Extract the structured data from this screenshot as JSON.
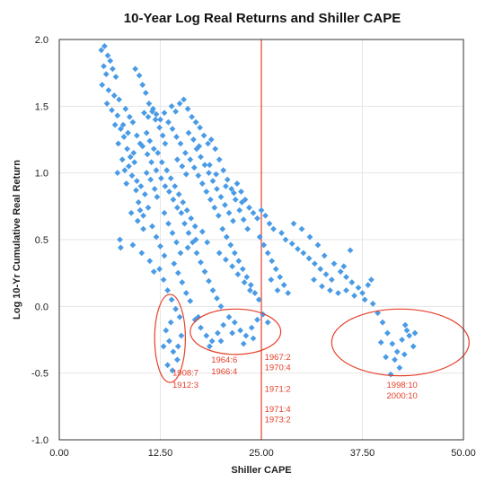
{
  "chart_data": {
    "type": "scatter",
    "title": "10-Year Log Real Returns and Shiller CAPE",
    "xlabel": "Shiller CAPE",
    "ylabel": "Log 10-Yr Cumulative Real Return",
    "xlim": [
      0,
      50
    ],
    "ylim": [
      -1.0,
      2.0
    ],
    "x_ticks": [
      "0.00",
      "12.50",
      "25.00",
      "37.50",
      "50.00"
    ],
    "y_ticks": [
      "2.0",
      "1.5",
      "1.0",
      "0.5",
      "0.0",
      "-0.5",
      "-1.0"
    ],
    "grid": true,
    "marker_color": "#4a9be6",
    "reference_line": {
      "x": 25.0,
      "color": "#e4402a"
    },
    "ellipses": [
      {
        "cx": 13.7,
        "cy": -0.24,
        "rx": 1.9,
        "ry": 0.33,
        "color": "#e4402a"
      },
      {
        "cx": 21.8,
        "cy": -0.19,
        "rx": 5.6,
        "ry": 0.17,
        "color": "#e4402a"
      },
      {
        "cx": 42.2,
        "cy": -0.27,
        "rx": 8.5,
        "ry": 0.25,
        "color": "#e4402a"
      }
    ],
    "annotations": [
      {
        "text": "1908:7",
        "x": 14.0,
        "y": -0.52
      },
      {
        "text": "1912:3",
        "x": 14.0,
        "y": -0.61
      },
      {
        "text": "1964:6",
        "x": 18.8,
        "y": -0.42
      },
      {
        "text": "1966:4",
        "x": 18.8,
        "y": -0.51
      },
      {
        "text": "1967:2",
        "x": 25.4,
        "y": -0.4
      },
      {
        "text": "1970:4",
        "x": 25.4,
        "y": -0.48
      },
      {
        "text": "1971:2",
        "x": 25.4,
        "y": -0.64
      },
      {
        "text": "1971:4",
        "x": 25.4,
        "y": -0.79
      },
      {
        "text": "1973:2",
        "x": 25.4,
        "y": -0.87
      },
      {
        "text": "1998:10",
        "x": 40.5,
        "y": -0.61
      },
      {
        "text": "2000:10",
        "x": 40.5,
        "y": -0.69
      }
    ],
    "points": [
      [
        5.2,
        1.92
      ],
      [
        5.6,
        1.95
      ],
      [
        6.0,
        1.88
      ],
      [
        5.5,
        1.8
      ],
      [
        6.3,
        1.84
      ],
      [
        5.8,
        1.74
      ],
      [
        6.6,
        1.78
      ],
      [
        7.0,
        1.72
      ],
      [
        5.3,
        1.66
      ],
      [
        6.1,
        1.62
      ],
      [
        6.8,
        1.58
      ],
      [
        7.4,
        1.55
      ],
      [
        5.9,
        1.52
      ],
      [
        6.5,
        1.47
      ],
      [
        7.2,
        1.43
      ],
      [
        6.9,
        1.36
      ],
      [
        7.6,
        1.33
      ],
      [
        8.0,
        1.27
      ],
      [
        7.3,
        1.22
      ],
      [
        8.4,
        1.18
      ],
      [
        8.8,
        1.12
      ],
      [
        9.3,
        1.08
      ],
      [
        8.1,
        1.02
      ],
      [
        9.0,
        0.98
      ],
      [
        9.6,
        0.94
      ],
      [
        10.1,
        0.9
      ],
      [
        10.6,
        0.84
      ],
      [
        9.8,
        0.78
      ],
      [
        11.0,
        0.74
      ],
      [
        10.4,
        0.68
      ],
      [
        9.2,
        1.15
      ],
      [
        8.6,
        1.05
      ],
      [
        7.8,
        1.1
      ],
      [
        7.2,
        1.0
      ],
      [
        8.3,
        0.92
      ],
      [
        9.5,
        0.87
      ],
      [
        10.8,
        1.0
      ],
      [
        11.3,
        0.95
      ],
      [
        11.8,
        0.88
      ],
      [
        12.1,
        0.82
      ],
      [
        9.4,
        1.78
      ],
      [
        9.9,
        1.73
      ],
      [
        10.3,
        1.66
      ],
      [
        10.7,
        1.6
      ],
      [
        11.1,
        1.52
      ],
      [
        11.5,
        1.46
      ],
      [
        11.9,
        1.4
      ],
      [
        12.4,
        1.34
      ],
      [
        12.8,
        1.28
      ],
      [
        13.1,
        1.22
      ],
      [
        10.5,
        1.45
      ],
      [
        11.0,
        1.42
      ],
      [
        11.6,
        1.48
      ],
      [
        12.0,
        1.44
      ],
      [
        12.5,
        1.4
      ],
      [
        13.0,
        1.45
      ],
      [
        13.5,
        1.38
      ],
      [
        14.0,
        1.33
      ],
      [
        14.5,
        1.27
      ],
      [
        15.0,
        1.22
      ],
      [
        12.2,
        1.15
      ],
      [
        12.7,
        1.08
      ],
      [
        13.3,
        1.02
      ],
      [
        13.8,
        0.96
      ],
      [
        14.3,
        0.9
      ],
      [
        14.8,
        0.84
      ],
      [
        15.3,
        0.78
      ],
      [
        15.8,
        0.72
      ],
      [
        16.3,
        0.66
      ],
      [
        16.8,
        0.6
      ],
      [
        13.9,
        1.5
      ],
      [
        14.4,
        1.46
      ],
      [
        14.9,
        1.52
      ],
      [
        15.4,
        1.55
      ],
      [
        15.9,
        1.48
      ],
      [
        16.4,
        1.42
      ],
      [
        16.9,
        1.38
      ],
      [
        17.4,
        1.34
      ],
      [
        17.9,
        1.28
      ],
      [
        18.4,
        1.22
      ],
      [
        15.2,
        1.05
      ],
      [
        15.7,
        0.99
      ],
      [
        16.2,
        1.1
      ],
      [
        16.7,
        1.04
      ],
      [
        17.2,
        0.98
      ],
      [
        17.7,
        0.92
      ],
      [
        18.2,
        0.86
      ],
      [
        18.7,
        0.8
      ],
      [
        19.2,
        0.74
      ],
      [
        19.7,
        0.68
      ],
      [
        17.0,
        1.18
      ],
      [
        17.5,
        1.12
      ],
      [
        18.0,
        1.06
      ],
      [
        18.5,
        1.0
      ],
      [
        19.0,
        0.94
      ],
      [
        19.5,
        0.88
      ],
      [
        20.0,
        0.82
      ],
      [
        20.5,
        0.76
      ],
      [
        21.0,
        0.7
      ],
      [
        21.5,
        0.64
      ],
      [
        18.8,
        1.25
      ],
      [
        19.3,
        1.18
      ],
      [
        19.8,
        1.1
      ],
      [
        20.3,
        1.02
      ],
      [
        20.8,
        0.95
      ],
      [
        21.3,
        0.88
      ],
      [
        21.8,
        0.8
      ],
      [
        22.3,
        0.72
      ],
      [
        22.8,
        0.65
      ],
      [
        23.3,
        0.58
      ],
      [
        20.2,
        0.58
      ],
      [
        20.7,
        0.52
      ],
      [
        21.2,
        0.46
      ],
      [
        21.7,
        0.4
      ],
      [
        22.2,
        0.34
      ],
      [
        22.7,
        0.28
      ],
      [
        23.2,
        0.22
      ],
      [
        23.7,
        0.16
      ],
      [
        24.2,
        0.1
      ],
      [
        24.7,
        0.05
      ],
      [
        15.5,
        0.62
      ],
      [
        16.0,
        0.55
      ],
      [
        16.5,
        0.48
      ],
      [
        17.0,
        0.4
      ],
      [
        17.5,
        0.33
      ],
      [
        18.0,
        0.26
      ],
      [
        18.5,
        0.19
      ],
      [
        19.0,
        0.12
      ],
      [
        19.5,
        0.06
      ],
      [
        20.0,
        0.0
      ],
      [
        13.0,
        0.7
      ],
      [
        13.5,
        0.62
      ],
      [
        14.0,
        0.55
      ],
      [
        14.5,
        0.48
      ],
      [
        15.0,
        0.4
      ],
      [
        14.2,
        0.32
      ],
      [
        14.7,
        0.25
      ],
      [
        15.2,
        0.18
      ],
      [
        15.7,
        0.1
      ],
      [
        16.2,
        0.04
      ],
      [
        11.5,
        0.6
      ],
      [
        12.0,
        0.52
      ],
      [
        12.5,
        0.45
      ],
      [
        13.0,
        0.38
      ],
      [
        12.4,
        0.28
      ],
      [
        12.9,
        0.2
      ],
      [
        13.4,
        0.12
      ],
      [
        13.9,
        0.05
      ],
      [
        14.4,
        -0.02
      ],
      [
        14.9,
        -0.08
      ],
      [
        10.0,
        0.72
      ],
      [
        10.4,
        0.58
      ],
      [
        9.7,
        0.64
      ],
      [
        8.9,
        0.7
      ],
      [
        7.5,
        0.5
      ],
      [
        7.6,
        0.44
      ],
      [
        9.1,
        0.46
      ],
      [
        10.2,
        0.4
      ],
      [
        11.2,
        0.34
      ],
      [
        11.7,
        0.26
      ],
      [
        22.0,
        0.92
      ],
      [
        22.5,
        0.86
      ],
      [
        23.0,
        0.8
      ],
      [
        23.5,
        0.74
      ],
      [
        24.0,
        0.7
      ],
      [
        24.5,
        0.66
      ],
      [
        25.0,
        0.72
      ],
      [
        25.5,
        0.68
      ],
      [
        26.0,
        0.62
      ],
      [
        26.5,
        0.58
      ],
      [
        24.8,
        0.52
      ],
      [
        25.3,
        0.46
      ],
      [
        25.8,
        0.4
      ],
      [
        26.3,
        0.34
      ],
      [
        26.8,
        0.28
      ],
      [
        27.3,
        0.22
      ],
      [
        27.8,
        0.16
      ],
      [
        28.3,
        0.1
      ],
      [
        26.2,
        0.2
      ],
      [
        27.0,
        0.12
      ],
      [
        27.5,
        0.55
      ],
      [
        28.0,
        0.5
      ],
      [
        28.8,
        0.47
      ],
      [
        29.5,
        0.43
      ],
      [
        30.2,
        0.4
      ],
      [
        30.9,
        0.36
      ],
      [
        31.6,
        0.32
      ],
      [
        32.3,
        0.28
      ],
      [
        33.0,
        0.24
      ],
      [
        33.7,
        0.2
      ],
      [
        29.0,
        0.62
      ],
      [
        30.0,
        0.58
      ],
      [
        31.0,
        0.52
      ],
      [
        32.0,
        0.46
      ],
      [
        32.8,
        0.38
      ],
      [
        34.0,
        0.32
      ],
      [
        34.8,
        0.26
      ],
      [
        35.5,
        0.22
      ],
      [
        36.2,
        0.18
      ],
      [
        37.0,
        0.14
      ],
      [
        31.5,
        0.2
      ],
      [
        32.5,
        0.15
      ],
      [
        33.5,
        0.12
      ],
      [
        34.5,
        0.1
      ],
      [
        35.5,
        0.12
      ],
      [
        36.5,
        0.08
      ],
      [
        37.5,
        0.1
      ],
      [
        38.2,
        0.16
      ],
      [
        38.6,
        0.2
      ],
      [
        37.8,
        0.05
      ],
      [
        36.0,
        0.42
      ],
      [
        35.2,
        0.3
      ],
      [
        38.8,
        0.02
      ],
      [
        39.4,
        -0.05
      ],
      [
        40.0,
        -0.12
      ],
      [
        40.6,
        -0.2
      ],
      [
        41.2,
        -0.28
      ],
      [
        41.8,
        -0.34
      ],
      [
        42.4,
        -0.25
      ],
      [
        43.0,
        -0.18
      ],
      [
        41.5,
        -0.4
      ],
      [
        42.1,
        -0.46
      ],
      [
        42.7,
        -0.36
      ],
      [
        43.3,
        -0.22
      ],
      [
        43.8,
        -0.3
      ],
      [
        40.4,
        -0.38
      ],
      [
        39.8,
        -0.27
      ],
      [
        44.0,
        -0.2
      ],
      [
        42.8,
        -0.14
      ],
      [
        41.0,
        -0.51
      ],
      [
        13.2,
        -0.18
      ],
      [
        13.6,
        -0.26
      ],
      [
        14.1,
        -0.34
      ],
      [
        14.6,
        -0.4
      ],
      [
        13.4,
        -0.44
      ],
      [
        14.0,
        -0.48
      ],
      [
        14.7,
        -0.3
      ],
      [
        15.1,
        -0.22
      ],
      [
        12.9,
        -0.3
      ],
      [
        13.8,
        -0.12
      ],
      [
        16.8,
        -0.1
      ],
      [
        17.5,
        -0.16
      ],
      [
        18.2,
        -0.22
      ],
      [
        18.9,
        -0.26
      ],
      [
        19.6,
        -0.2
      ],
      [
        20.3,
        -0.14
      ],
      [
        21.0,
        -0.08
      ],
      [
        21.7,
        -0.12
      ],
      [
        22.4,
        -0.18
      ],
      [
        23.1,
        -0.22
      ],
      [
        23.8,
        -0.16
      ],
      [
        24.5,
        -0.1
      ],
      [
        25.2,
        -0.06
      ],
      [
        25.8,
        -0.12
      ],
      [
        24.0,
        -0.24
      ],
      [
        22.8,
        -0.28
      ],
      [
        21.4,
        -0.2
      ],
      [
        20.0,
        -0.26
      ],
      [
        18.6,
        -0.3
      ],
      [
        17.2,
        -0.08
      ],
      [
        8.2,
        1.48
      ],
      [
        8.7,
        1.42
      ],
      [
        9.1,
        1.38
      ],
      [
        8.5,
        1.3
      ],
      [
        7.9,
        1.36
      ],
      [
        10.8,
        1.3
      ],
      [
        11.2,
        1.24
      ],
      [
        11.7,
        1.18
      ],
      [
        10.0,
        1.22
      ],
      [
        9.6,
        1.28
      ],
      [
        16.0,
        1.3
      ],
      [
        16.6,
        1.25
      ],
      [
        17.3,
        1.2
      ],
      [
        15.6,
        1.15
      ],
      [
        14.6,
        1.1
      ],
      [
        18.6,
        1.06
      ],
      [
        19.4,
        0.99
      ],
      [
        20.6,
        0.9
      ],
      [
        21.6,
        0.85
      ],
      [
        22.6,
        0.78
      ],
      [
        19.8,
        0.4
      ],
      [
        20.6,
        0.35
      ],
      [
        21.4,
        0.3
      ],
      [
        22.1,
        0.24
      ],
      [
        22.9,
        0.18
      ],
      [
        23.6,
        0.12
      ],
      [
        18.3,
        0.48
      ],
      [
        17.7,
        0.56
      ],
      [
        16.9,
        0.5
      ],
      [
        15.9,
        0.44
      ],
      [
        12.6,
        0.96
      ],
      [
        13.1,
        0.9
      ],
      [
        13.6,
        0.86
      ],
      [
        14.1,
        0.8
      ],
      [
        14.6,
        0.74
      ],
      [
        15.1,
        0.7
      ],
      [
        12.0,
        1.02
      ],
      [
        11.4,
        1.08
      ],
      [
        10.9,
        1.14
      ],
      [
        10.3,
        1.2
      ]
    ]
  }
}
